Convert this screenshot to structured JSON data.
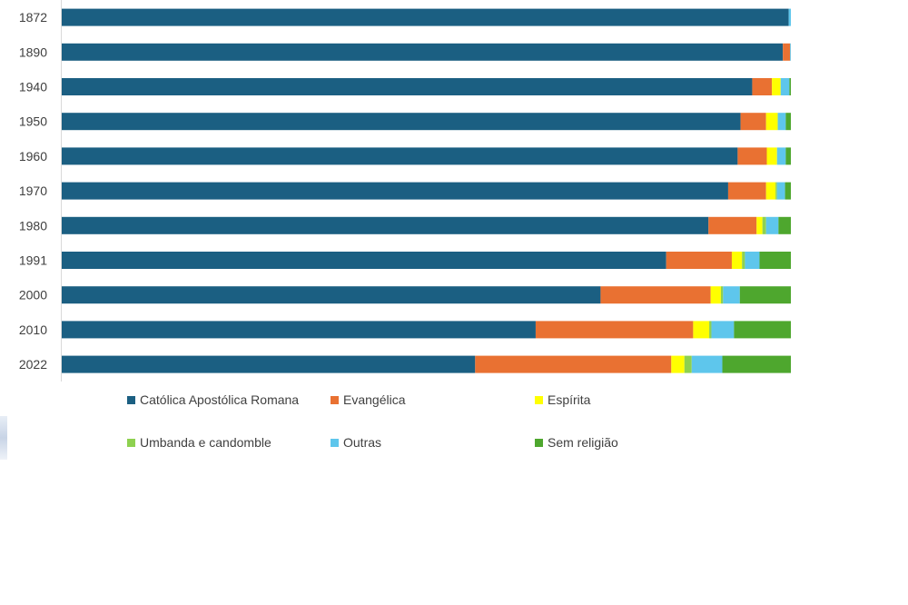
{
  "chart_data": {
    "type": "bar",
    "orientation": "horizontal",
    "stacked": true,
    "percent_stacked": true,
    "categories": [
      "1872",
      "1890",
      "1940",
      "1950",
      "1960",
      "1970",
      "1980",
      "1991",
      "2000",
      "2010",
      "2022"
    ],
    "series": [
      {
        "name": "Católica Apostólica Romana",
        "color": "#1b5f82",
        "values": [
          99.7,
          98.9,
          94.7,
          93.1,
          92.7,
          91.4,
          88.7,
          82.9,
          73.9,
          65.0,
          56.7
        ]
      },
      {
        "name": "Evangélica",
        "color": "#e97132",
        "values": [
          0.0,
          1.0,
          2.7,
          3.5,
          4.0,
          5.2,
          6.6,
          9.0,
          15.1,
          21.6,
          26.9
        ]
      },
      {
        "name": "Espírita",
        "color": "#ffff00",
        "values": [
          0.0,
          0.0,
          1.2,
          1.6,
          1.4,
          1.3,
          0.8,
          1.4,
          1.4,
          2.2,
          1.8
        ]
      },
      {
        "name": "Umbanda e candomble",
        "color": "#8ed150",
        "values": [
          0.0,
          0.0,
          0.0,
          0.0,
          0.0,
          0.2,
          0.5,
          0.4,
          0.3,
          0.3,
          1.0
        ]
      },
      {
        "name": "Outras",
        "color": "#5ec6ec",
        "values": [
          0.3,
          0.1,
          1.2,
          1.1,
          1.2,
          1.1,
          1.7,
          2.0,
          2.3,
          3.1,
          4.2
        ]
      },
      {
        "name": "Sem religião",
        "color": "#4ea72e",
        "values": [
          0.0,
          0.0,
          0.2,
          0.7,
          0.7,
          0.8,
          1.7,
          4.3,
          7.0,
          7.8,
          9.4
        ]
      }
    ],
    "xlim": [
      0,
      100
    ],
    "grid": false,
    "legend_position": "bottom"
  }
}
